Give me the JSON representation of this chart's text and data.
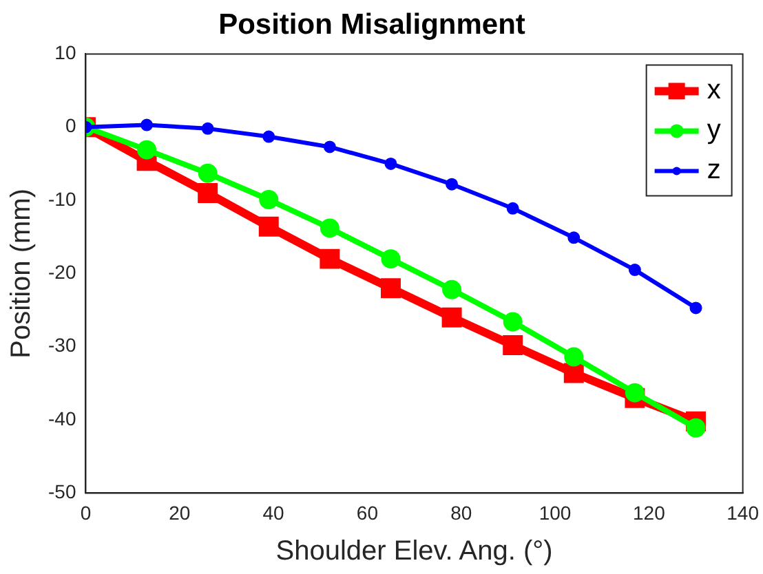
{
  "chart_data": {
    "type": "line",
    "title": "Position Misalignment",
    "xlabel": "Shoulder Elev. Ang. (°)",
    "ylabel": "Position (mm)",
    "x": [
      0,
      13,
      26,
      39,
      52,
      65,
      78,
      91,
      104,
      117,
      130
    ],
    "series": [
      {
        "name": "x",
        "color": "#ff0000",
        "marker": "square",
        "values": [
          0,
          -4.6,
          -9.0,
          -13.6,
          -18.0,
          -22.0,
          -26.0,
          -29.8,
          -33.6,
          -37.0,
          -40.2
        ]
      },
      {
        "name": "y",
        "color": "#00ff00",
        "marker": "circle",
        "values": [
          0,
          -3.1,
          -6.3,
          -9.9,
          -13.8,
          -18.0,
          -22.2,
          -26.6,
          -31.4,
          -36.3,
          -41.1
        ]
      },
      {
        "name": "z",
        "color": "#0000ff",
        "marker": "circle",
        "values": [
          0,
          0.3,
          -0.2,
          -1.3,
          -2.7,
          -5.0,
          -7.8,
          -11.1,
          -15.1,
          -19.5,
          -24.7
        ]
      }
    ],
    "xlim": [
      0,
      140
    ],
    "xticks": [
      0,
      20,
      40,
      60,
      80,
      100,
      120,
      140
    ],
    "ylim": [
      -50,
      10
    ],
    "yticks": [
      -50,
      -40,
      -30,
      -20,
      -10,
      0,
      10
    ],
    "grid": false,
    "legend": "top right",
    "line_style": "solid"
  }
}
